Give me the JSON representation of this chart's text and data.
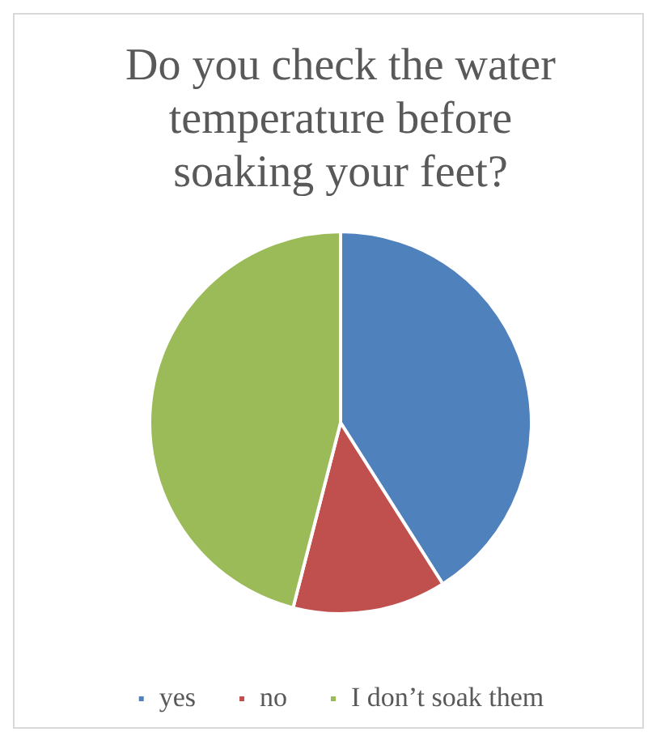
{
  "chart_data": {
    "type": "pie",
    "title": "Do you check the water temperature before soaking your feet?",
    "categories": [
      "yes",
      "no",
      "I don’t soak them"
    ],
    "values": [
      41,
      13,
      46
    ],
    "colors": [
      "#4f81bd",
      "#c0504d",
      "#9bbb59"
    ],
    "legend": "bottom"
  }
}
